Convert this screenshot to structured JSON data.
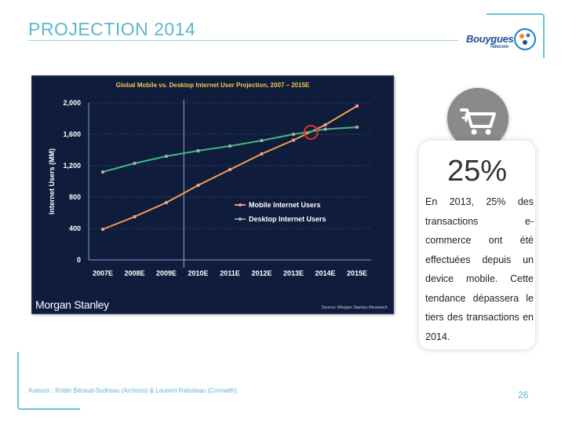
{
  "slide": {
    "title": "PROJECTION 2014",
    "page_number": "26",
    "footer": "Auteurs : Robin Béraud-Sudreau (Archriss) & Laurent Raboteau (Cornwith).",
    "accent_color": "#5bb7cc"
  },
  "logo": {
    "name": "Bouygues",
    "subtitle": "Telecom",
    "icon": "bouygues-telecom-logo"
  },
  "stat_card": {
    "icon": "shopping-cart-plus-icon",
    "percent": "25%",
    "text": "En 2013, 25% des transactions e-commerce ont été effectuées depuis un device mobile. Cette tendance dépassera le tiers des transactions en 2014."
  },
  "chart_data": {
    "type": "line",
    "title": "Global Mobile vs. Desktop Internet User Projection, 2007 – 2015E",
    "xlabel": "",
    "ylabel": "Internet Users (MM)",
    "categories": [
      "2007E",
      "2008E",
      "2009E",
      "2010E",
      "2011E",
      "2012E",
      "2013E",
      "2014E",
      "2015E"
    ],
    "y_ticks": [
      "0",
      "400",
      "800",
      "1,200",
      "1,600",
      "2,000"
    ],
    "ylim": [
      0,
      2000
    ],
    "grid": true,
    "legend_position": "center-right",
    "series": [
      {
        "name": "Mobile Internet Users",
        "color": "#f0a24a",
        "x": [
          2007,
          2008,
          2009,
          2010,
          2011,
          2012,
          2013,
          2014,
          2015
        ],
        "values": [
          390,
          550,
          730,
          950,
          1150,
          1350,
          1525,
          1720,
          1960
        ]
      },
      {
        "name": "Desktop Internet Users",
        "color": "#3fb97f",
        "x": [
          2007,
          2008,
          2009,
          2010,
          2011,
          2012,
          2013,
          2014,
          2015
        ],
        "values": [
          1120,
          1230,
          1320,
          1390,
          1450,
          1520,
          1600,
          1665,
          1690
        ]
      }
    ],
    "vertical_marker_x": 2009.55,
    "crossover_marker": {
      "x": 2013.55,
      "y": 1625,
      "color": "#e03030"
    },
    "brand": "Morgan Stanley",
    "source": "Source: Morgan Stanley Research."
  }
}
